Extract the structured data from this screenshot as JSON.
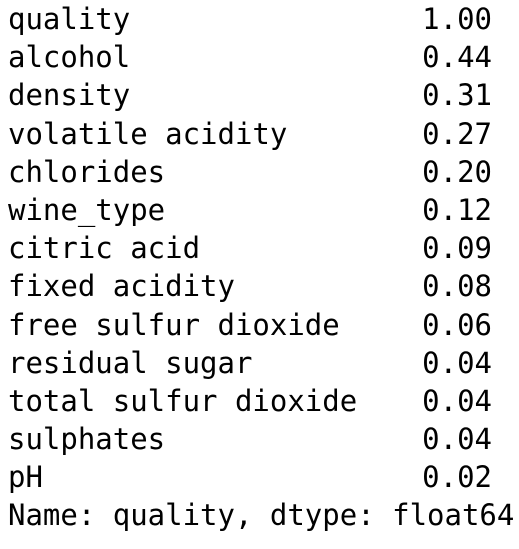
{
  "series_output": {
    "rows": [
      {
        "label": "quality",
        "value": "1.00"
      },
      {
        "label": "alcohol",
        "value": "0.44"
      },
      {
        "label": "density",
        "value": "0.31"
      },
      {
        "label": "volatile acidity",
        "value": "0.27"
      },
      {
        "label": "chlorides",
        "value": "0.20"
      },
      {
        "label": "wine_type",
        "value": "0.12"
      },
      {
        "label": "citric acid",
        "value": "0.09"
      },
      {
        "label": "fixed acidity",
        "value": "0.08"
      },
      {
        "label": "free sulfur dioxide",
        "value": "0.06"
      },
      {
        "label": "residual sugar",
        "value": "0.04"
      },
      {
        "label": "total sulfur dioxide",
        "value": "0.04"
      },
      {
        "label": "sulphates",
        "value": "0.04"
      },
      {
        "label": "pH",
        "value": "0.02"
      }
    ],
    "footer": "Name: quality, dtype: float64"
  }
}
